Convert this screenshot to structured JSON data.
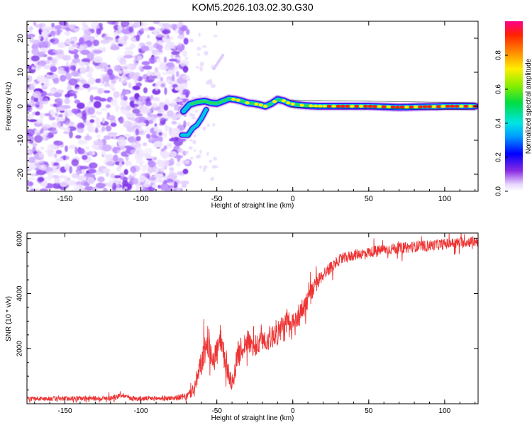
{
  "title": "KOM5.2026.103.02.30.G30",
  "chart_data": [
    {
      "type": "heatmap",
      "name": "spectrogram",
      "xlabel": "Height of straight line (km)",
      "ylabel": "Frequency (Hz)",
      "xlim": [
        -175,
        122
      ],
      "ylim": [
        -25,
        25
      ],
      "xticks": [
        "-150",
        "-100",
        "-50",
        "0",
        "50",
        "100"
      ],
      "xtick_values": [
        -150,
        -100,
        -50,
        0,
        50,
        100
      ],
      "yticks": [
        "20",
        "10",
        "0",
        "-10",
        "-20"
      ],
      "ytick_values": [
        20,
        10,
        0,
        -10,
        -20
      ],
      "colorbar": {
        "label": "Normalized spectral amplitude",
        "range": [
          0,
          1
        ],
        "ticks": [
          "0.0",
          "0.2",
          "0.4",
          "0.6",
          "0.8"
        ],
        "tick_values": [
          0.0,
          0.2,
          0.4,
          0.6,
          0.8
        ]
      },
      "signal_track": {
        "x": [
          -72,
          -68,
          -63,
          -58,
          -54,
          -50,
          -46,
          -42,
          -38,
          -34,
          -30,
          -26,
          -22,
          -18,
          -14,
          -10,
          -6,
          -2,
          2,
          8,
          16,
          30,
          50,
          70,
          80,
          90,
          95,
          100,
          120
        ],
        "freq": [
          -1.5,
          0.5,
          1.2,
          1.5,
          1.0,
          0.8,
          1.5,
          2.2,
          2.0,
          1.6,
          1.0,
          0.8,
          0.5,
          0.0,
          0.8,
          2.0,
          1.6,
          0.8,
          0.5,
          0.2,
          0.0,
          0.0,
          0.0,
          -0.3,
          -0.2,
          -0.1,
          -0.1,
          0.0,
          0.0
        ]
      },
      "secondary_track": {
        "x": [
          -73,
          -69,
          -66,
          -63,
          -60,
          -57
        ],
        "freq": [
          -8.5,
          -8.5,
          -6.5,
          -5.5,
          -3.5,
          -1.0
        ]
      }
    },
    {
      "type": "line",
      "name": "snr",
      "xlabel": "Height of straight line (km)",
      "ylabel": "SNR (10 * v/v)",
      "xlim": [
        -175,
        122
      ],
      "ylim": [
        0,
        6200
      ],
      "xticks": [
        "-150",
        "-100",
        "-50",
        "0",
        "50",
        "100"
      ],
      "xtick_values": [
        -150,
        -100,
        -50,
        0,
        50,
        100
      ],
      "yticks": [
        "2000",
        "4000",
        "6000"
      ],
      "ytick_values": [
        2000,
        4000,
        6000
      ],
      "color": "#ee3333",
      "envelope": {
        "x": [
          -175,
          -120,
          -112,
          -105,
          -80,
          -70,
          -65,
          -60,
          -56,
          -52,
          -48,
          -44,
          -40,
          -36,
          -30,
          -25,
          -20,
          -15,
          -10,
          -5,
          0,
          5,
          10,
          15,
          20,
          30,
          40,
          50,
          60,
          80,
          100,
          120
        ],
        "y": [
          180,
          200,
          320,
          180,
          200,
          260,
          500,
          1500,
          2300,
          1600,
          2200,
          1500,
          700,
          1800,
          2300,
          2000,
          2300,
          2400,
          2600,
          2800,
          2800,
          3300,
          3800,
          4300,
          4700,
          5200,
          5400,
          5500,
          5600,
          5700,
          5800,
          5900
        ],
        "noise": [
          80,
          90,
          90,
          90,
          90,
          120,
          300,
          500,
          600,
          500,
          600,
          500,
          300,
          500,
          400,
          400,
          400,
          450,
          500,
          550,
          550,
          450,
          400,
          300,
          250,
          200,
          200,
          200,
          200,
          200,
          200,
          200
        ]
      }
    }
  ]
}
